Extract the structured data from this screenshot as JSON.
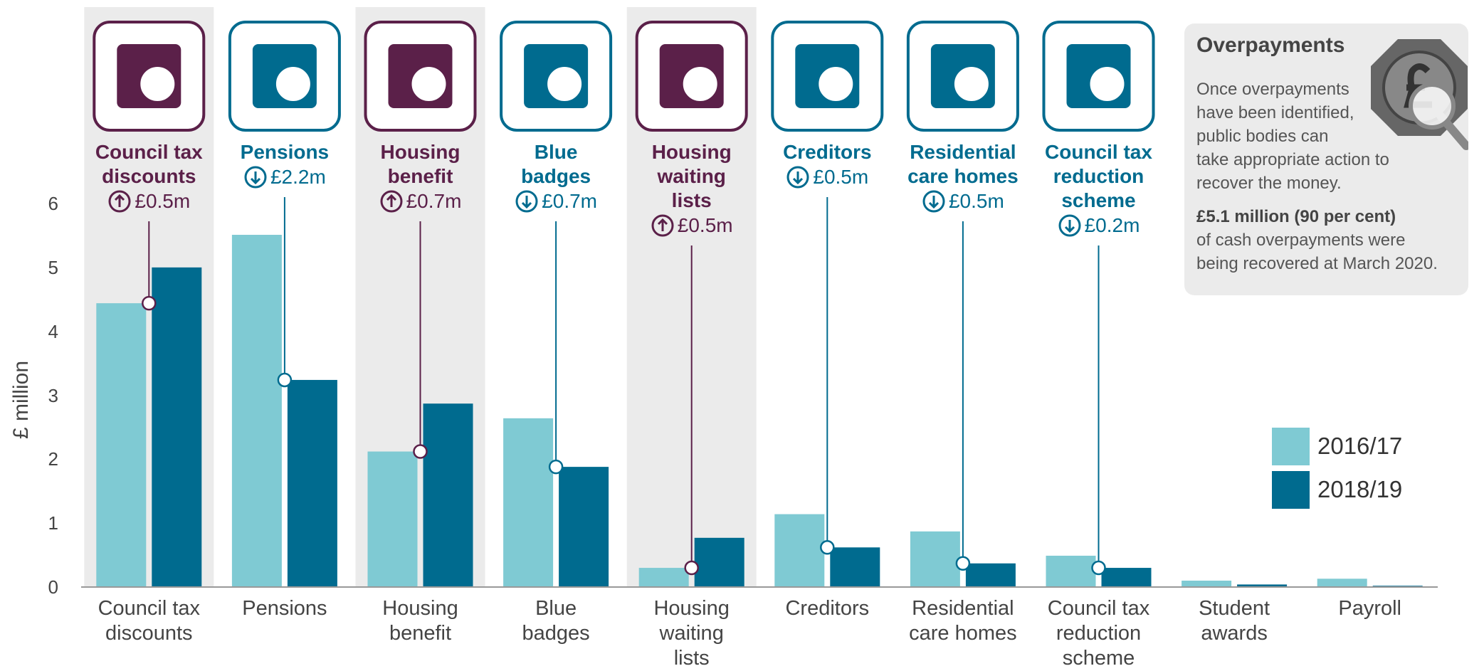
{
  "chart_data": {
    "type": "bar",
    "y_label": "£ million",
    "categories": [
      "Council tax\ndiscounts",
      "Pensions",
      "Housing\nbenefit",
      "Blue\nbadges",
      "Housing\nwaiting\nlists",
      "Creditors",
      "Residential\ncare homes",
      "Council tax\nreduction\nscheme",
      "Student\nawards",
      "Payroll"
    ],
    "series": [
      {
        "name": "2016/17",
        "color": "#7fcad3",
        "values": [
          4.44,
          5.51,
          2.12,
          2.64,
          0.3,
          1.14,
          0.87,
          0.49,
          0.1,
          0.13
        ]
      },
      {
        "name": "2018/19",
        "color": "#006b8f",
        "values": [
          5.0,
          3.24,
          2.87,
          1.88,
          0.77,
          0.62,
          0.37,
          0.3,
          0.04,
          0.02
        ]
      }
    ],
    "ylim": [
      0,
      6
    ],
    "yticks": [
      0,
      1,
      2,
      3,
      4,
      5,
      6
    ],
    "annotations": [
      {
        "direction": "up",
        "change": "£0.5m"
      },
      {
        "direction": "down",
        "change": "£2.2m"
      },
      {
        "direction": "up",
        "change": "£0.7m"
      },
      {
        "direction": "down",
        "change": "£0.7m"
      },
      {
        "direction": "up",
        "change": "£0.5m"
      },
      {
        "direction": "down",
        "change": "£0.5m"
      },
      {
        "direction": "down",
        "change": "£0.5m"
      },
      {
        "direction": "down",
        "change": "£0.2m"
      },
      null,
      null
    ],
    "direction_colors": {
      "up": "#5b2049",
      "down": "#006b8f"
    },
    "highlight_background": "#ebebeb",
    "legend_position": "right",
    "info_box": {
      "title": "Overpayments",
      "text": "Once overpayments have been identified, public bodies can take appropriate action to recover the money.",
      "highlight": "£5.1 million (90 per cent)",
      "text2": "of cash overpayments were being recovered at March 2020."
    }
  }
}
